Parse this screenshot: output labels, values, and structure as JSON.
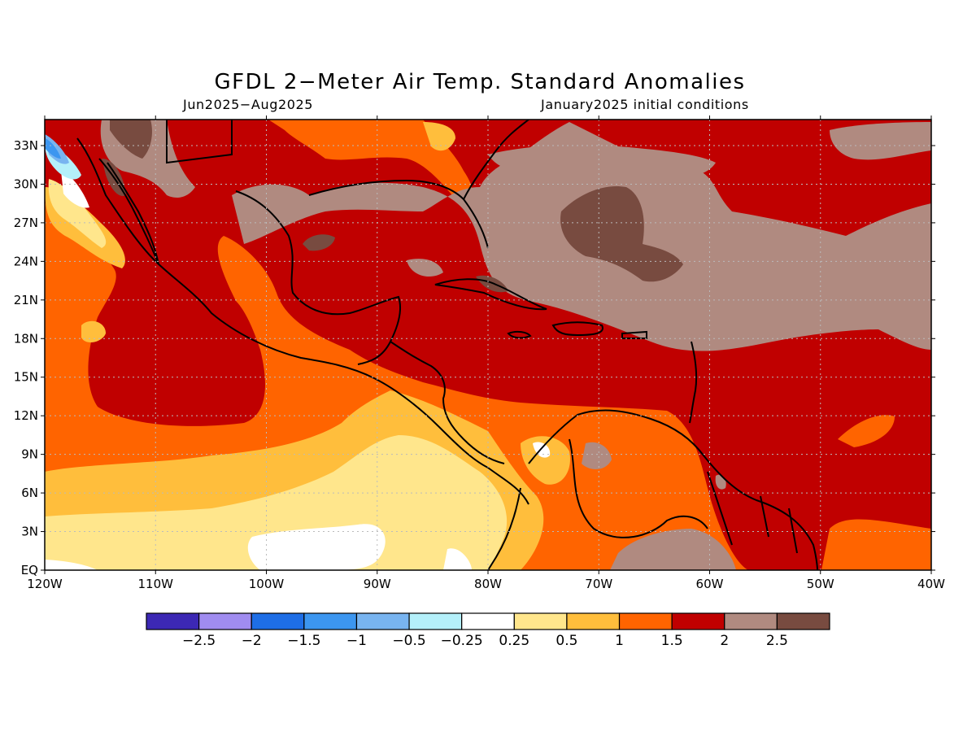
{
  "title": "GFDL 2−Meter Air Temp. Standard Anomalies",
  "period": "Jun2025−Aug2025",
  "init": "January2025 initial conditions",
  "lat_labels": [
    "33N",
    "30N",
    "27N",
    "24N",
    "21N",
    "18N",
    "15N",
    "12N",
    "9N",
    "6N",
    "3N",
    "EQ"
  ],
  "lon_labels": [
    "120W",
    "110W",
    "100W",
    "90W",
    "80W",
    "70W",
    "60W",
    "50W",
    "40W"
  ],
  "colorbar": {
    "colors": [
      "#3c28b4",
      "#a08cf0",
      "#1e6ee6",
      "#3c96f0",
      "#78b4f0",
      "#b4f0fa",
      "#ffffff",
      "#ffe68c",
      "#ffbe3c",
      "#ff6400",
      "#c00000",
      "#b08a80",
      "#784b40"
    ],
    "labels": [
      "−2.5",
      "−2",
      "−1.5",
      "−1",
      "−0.5",
      "−0.25",
      "0.25",
      "0.5",
      "1",
      "1.5",
      "2",
      "2.5"
    ]
  },
  "palette": {
    "white": "#ffffff",
    "lightyellow": "#ffe68c",
    "yelloworange": "#ffbe3c",
    "orange": "#ff6400",
    "red": "#c00000",
    "taupe": "#b08a80",
    "brown": "#784b40",
    "lightcyan": "#b4f0fa",
    "lightblue": "#78b4f0",
    "blue": "#3c96f0"
  }
}
